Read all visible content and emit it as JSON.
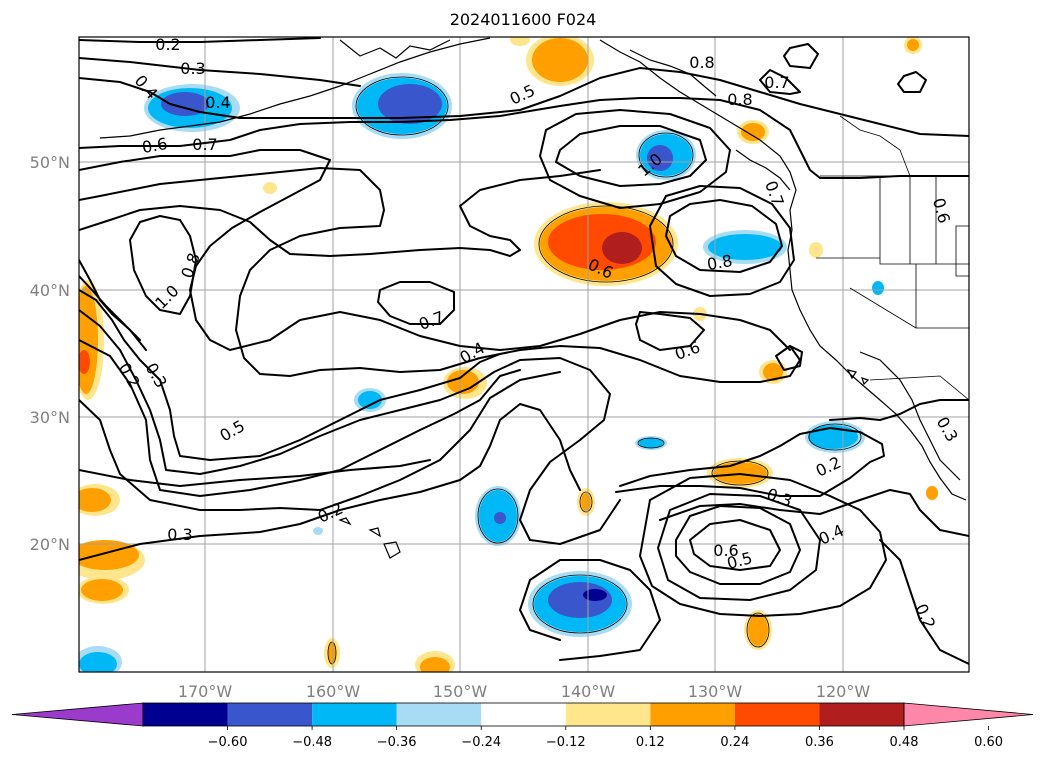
{
  "title": "2024011600 F024",
  "lon_labels": [
    "170°W",
    "160°W",
    "150°W",
    "140°W",
    "130°W",
    "120°W"
  ],
  "lat_labels": [
    "50°N",
    "40°N",
    "30°N",
    "20°N"
  ],
  "colorbar": {
    "ticks": [
      "−0.60",
      "−0.48",
      "−0.36",
      "−0.24",
      "−0.12",
      "0.12",
      "0.24",
      "0.36",
      "0.48",
      "0.60"
    ],
    "colors": [
      "#9b3bcc",
      "#000090",
      "#3a56cc",
      "#00b8f5",
      "#a8dcf5",
      "#ffffff",
      "#ffe68c",
      "#ffa000",
      "#ff4a00",
      "#b01e1e",
      "#ff88aa"
    ]
  },
  "contour_labels": [
    "0.2",
    "0.3",
    "0.4",
    "0.4",
    "0.6",
    "0.7",
    "0.5",
    "0.8",
    "0.7",
    "0.8",
    "1.0",
    "0.7",
    "0.6",
    "0.8",
    "0.6",
    "0.8",
    "1.0",
    "0.7",
    "0.4",
    "0.6",
    "0.2",
    "0.3",
    "0.5",
    "0.2",
    "0.3",
    "0.2",
    "0.3",
    "0.4",
    "0.5",
    "0.6",
    "0.2",
    "0.3"
  ]
}
